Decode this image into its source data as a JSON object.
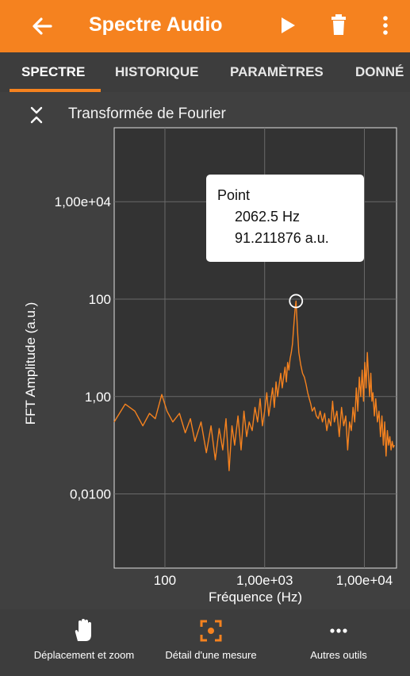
{
  "app_bar": {
    "title": "Spectre Audio",
    "back_icon": "arrow-back-icon",
    "play_icon": "play-icon",
    "delete_icon": "trash-icon",
    "more_icon": "more-vert-icon",
    "color": "#f5821f"
  },
  "tabs": [
    {
      "label": "SPECTRE",
      "active": true
    },
    {
      "label": "HISTORIQUE",
      "active": false
    },
    {
      "label": "PARAMÈTRES",
      "active": false
    },
    {
      "label": "DONNÉ",
      "active": false
    }
  ],
  "graph": {
    "title": "Transformée de Fourier",
    "collapse_icon": "collapse-icon"
  },
  "chart_data": {
    "type": "line",
    "title": "Transformée de Fourier",
    "xlabel": "Fréquence (Hz)",
    "ylabel": "FFT Amplitude (a.u.)",
    "x_scale": "log",
    "y_scale": "log",
    "xlim": [
      31,
      21000
    ],
    "ylim": [
      0.0003,
      330000
    ],
    "x_ticks": [
      {
        "value": 100,
        "label": "100"
      },
      {
        "value": 1000,
        "label": "1,00e+03"
      },
      {
        "value": 10000,
        "label": "1,00e+04"
      }
    ],
    "y_ticks": [
      {
        "value": 0.01,
        "label": "0,0100"
      },
      {
        "value": 1,
        "label": "1,00"
      },
      {
        "value": 100,
        "label": "100"
      },
      {
        "value": 10000,
        "label": "1,00e+04"
      }
    ],
    "grid": true,
    "line_color": "#f5821f",
    "series": [
      {
        "x": [
          31,
          40,
          50,
          60,
          70,
          80,
          93,
          105,
          120,
          140,
          160,
          180,
          200,
          230,
          260,
          290,
          320,
          350,
          380,
          410,
          440,
          470,
          500,
          540,
          580,
          620,
          660,
          700,
          750,
          800,
          850,
          900,
          950,
          1000,
          1050,
          1100,
          1150,
          1200,
          1250,
          1300,
          1350,
          1400,
          1450,
          1500,
          1550,
          1600,
          1650,
          1700,
          1750,
          1800,
          1850,
          1900,
          1950,
          2000,
          2030,
          2062.5,
          2100,
          2150,
          2200,
          2300,
          2400,
          2500,
          2600,
          2700,
          2800,
          2900,
          3000,
          3150,
          3300,
          3450,
          3600,
          3800,
          4000,
          4200,
          4400,
          4600,
          4800,
          5000,
          5300,
          5600,
          5900,
          6200,
          6500,
          6800,
          7100,
          7400,
          7700,
          8000,
          8300,
          8600,
          8900,
          9200,
          9500,
          9800,
          10100,
          10400,
          10700,
          11000,
          11300,
          11600,
          11900,
          12200,
          12600,
          13000,
          13500,
          14000,
          14500,
          15000,
          15500,
          16000,
          16500,
          17000,
          17500,
          18000,
          18500,
          19000,
          19500,
          20000
        ],
        "y": [
          0.3,
          0.7,
          0.5,
          0.25,
          0.45,
          0.35,
          1.1,
          0.5,
          0.3,
          0.45,
          0.18,
          0.35,
          0.12,
          0.3,
          0.07,
          0.25,
          0.05,
          0.22,
          0.08,
          0.35,
          0.03,
          0.25,
          0.1,
          0.4,
          0.08,
          0.5,
          0.15,
          0.3,
          0.2,
          0.6,
          0.3,
          0.9,
          0.25,
          0.5,
          1.2,
          0.4,
          0.8,
          1.5,
          0.6,
          2.0,
          1.0,
          1.8,
          3.0,
          1.5,
          2.5,
          4.0,
          2.0,
          5.0,
          3.5,
          6.0,
          8.0,
          12,
          25,
          50,
          70,
          91.211876,
          45,
          18,
          8,
          4.5,
          3,
          2.5,
          1.8,
          1.2,
          0.9,
          0.7,
          0.5,
          0.6,
          0.4,
          0.35,
          0.5,
          0.3,
          0.45,
          0.2,
          0.35,
          0.25,
          0.8,
          0.3,
          0.5,
          0.15,
          0.6,
          0.25,
          0.4,
          0.08,
          0.3,
          0.2,
          0.6,
          0.3,
          1.5,
          0.5,
          2.5,
          1.0,
          3.5,
          0.8,
          5.0,
          1.5,
          8.0,
          2.5,
          1.0,
          3.0,
          0.8,
          1.2,
          0.4,
          0.9,
          0.3,
          0.5,
          0.15,
          0.4,
          0.1,
          0.3,
          0.06,
          0.2,
          0.1,
          0.15,
          0.08,
          0.12,
          0.09,
          0.1
        ]
      }
    ],
    "marker": {
      "x": 2062.5,
      "y": 91.211876
    }
  },
  "tooltip": {
    "heading": "Point",
    "frequency": "2062.5 Hz",
    "amplitude": "91.211876 a.u."
  },
  "bottom_tools": [
    {
      "label": "Déplacement et zoom",
      "icon": "hand-icon",
      "highlighted": false
    },
    {
      "label": "Détail d'une mesure",
      "icon": "focus-target-icon",
      "highlighted": true
    },
    {
      "label": "Autres outils",
      "icon": "more-horiz-icon",
      "highlighted": false
    }
  ]
}
